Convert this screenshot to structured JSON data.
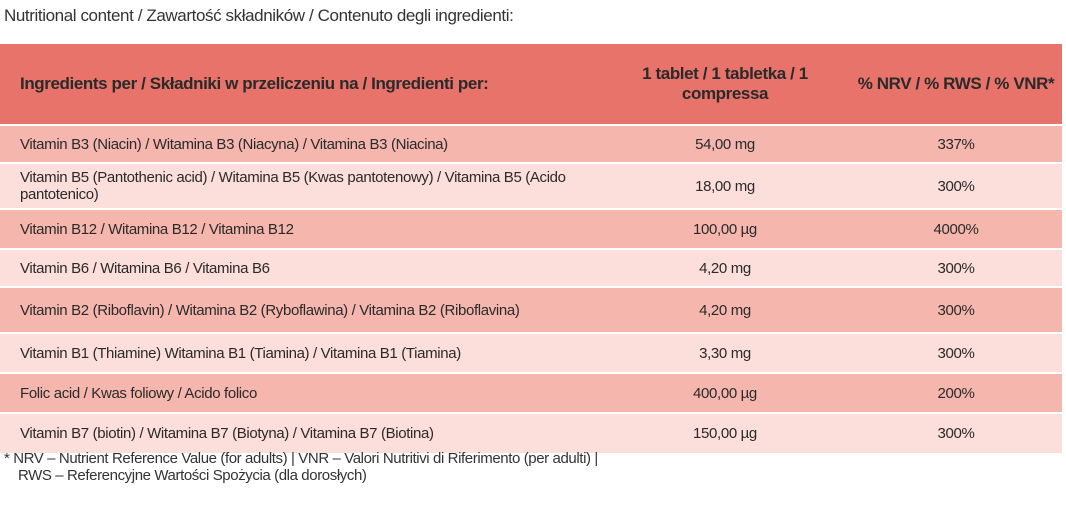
{
  "title": "Nutritional content / Zawartość składników / Contenuto degli ingredienti:",
  "table": {
    "header": [
      "Ingredients per / Składniki w przeliczeniu na / Ingredienti per:",
      "1 tablet / 1 tabletka / 1 compressa",
      "% NRV / % RWS / % VNR*"
    ],
    "rows": [
      [
        "Vitamin B3 (Niacin) / Witamina B3 (Niacyna) / Vitamina B3 (Niacina)",
        "54,00 mg",
        "337%"
      ],
      [
        "Vitamin B5 (Pantothenic acid) / Witamina B5 (Kwas pantotenowy) / Vitamina B5 (Acido pantotenico)",
        "18,00 mg",
        "300%"
      ],
      [
        "Vitamin B12 / Witamina B12 / Vitamina B12",
        "100,00 µg",
        "4000%"
      ],
      [
        "Vitamin B6 / Witamina B6 / Vitamina B6",
        "4,20 mg",
        "300%"
      ],
      [
        "Vitamin B2 (Riboflavin) / Witamina B2 (Ryboflawina) / Vitamina B2 (Riboflavina)",
        "4,20 mg",
        "300%"
      ],
      [
        "Vitamin B1 (Thiamine)  Witamina B1 (Tiamina) / Vitamina B1 (Tiamina)",
        "3,30 mg",
        "300%"
      ],
      [
        "Folic acid / Kwas foliowy / Acido folico",
        "400,00 µg",
        "200%"
      ],
      [
        "Vitamin B7 (biotin) / Witamina B7 (Biotyna) / Vitamina B7 (Biotina)",
        "150,00 µg",
        "300%"
      ]
    ]
  },
  "footnote": [
    "* NRV – Nutrient Reference Value (for adults) | VNR – Valori Nutritivi di Riferimento (per adulti) |",
    "RWS – Referencyjne Wartości Spożycia (dla dorosłych)"
  ]
}
